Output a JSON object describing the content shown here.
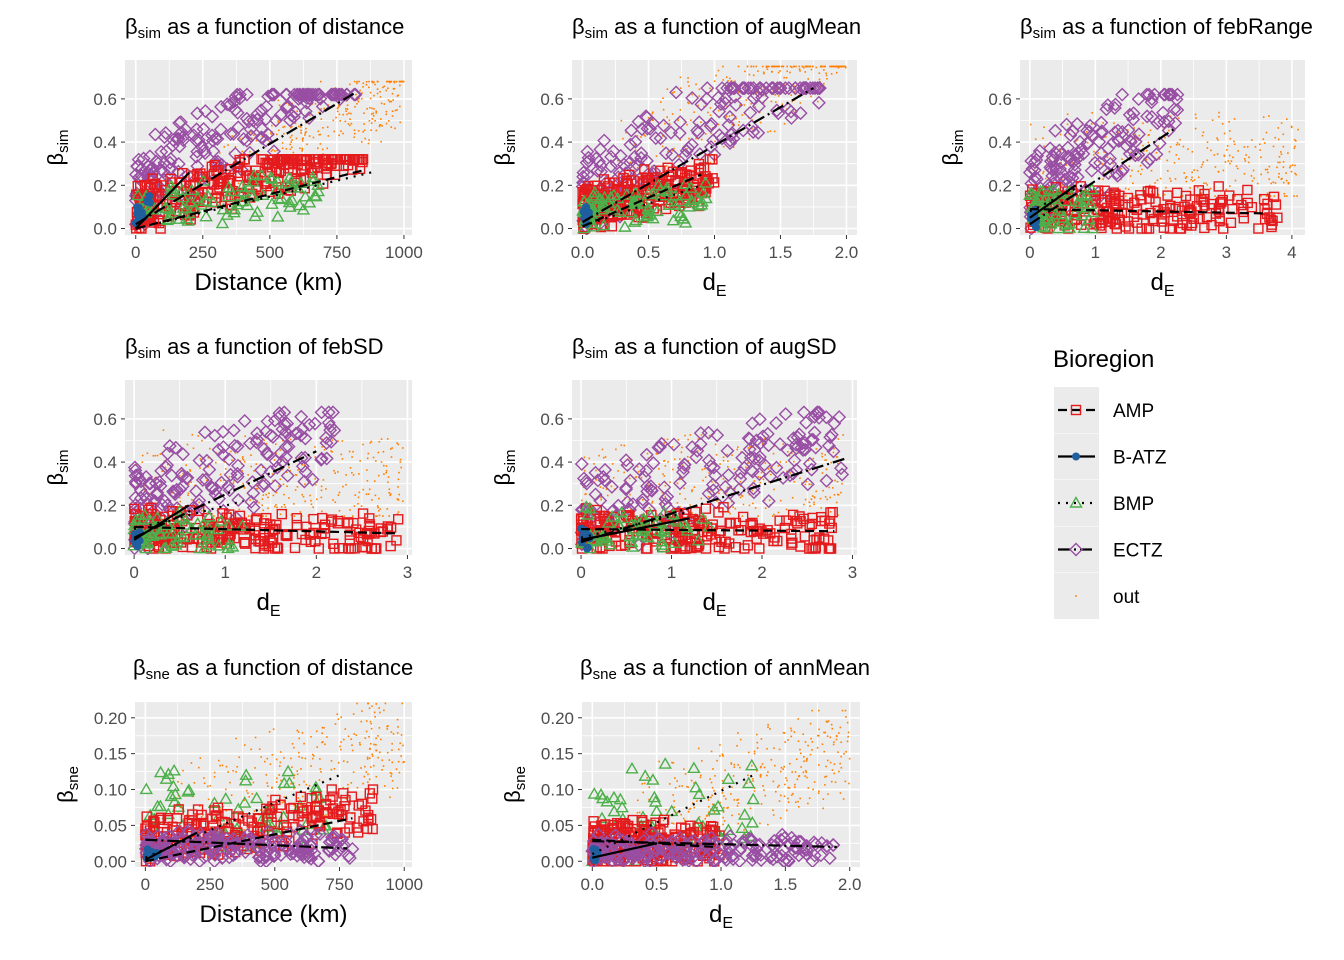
{
  "colors": {
    "panel_bg": "#EBEBEB",
    "grid": "#FFFFFF",
    "tick_text": "#4D4D4D",
    "text": "#000000",
    "AMP": "#E41A1C",
    "B-ATZ": "#1F5F9E",
    "BMP": "#4DAF4A",
    "ECTZ": "#984EA3",
    "out": "#FF7F00",
    "fit_line": "#000000"
  },
  "legend": {
    "title": "Bioregion",
    "entries": [
      {
        "key": "AMP",
        "label": "AMP",
        "marker": "square-open",
        "line": "dashed"
      },
      {
        "key": "B-ATZ",
        "label": "B-ATZ",
        "marker": "circle-filled",
        "line": "solid"
      },
      {
        "key": "BMP",
        "label": "BMP",
        "marker": "triangle-open",
        "line": "dotted"
      },
      {
        "key": "ECTZ",
        "label": "ECTZ",
        "marker": "diamond-open",
        "line": "dashdot"
      },
      {
        "key": "out",
        "label": "out",
        "marker": "point",
        "line": "none"
      }
    ]
  },
  "chart_data": [
    {
      "type": "scatter",
      "title": {
        "sym": "β",
        "sub": "sim",
        "rest": " as a function of distance"
      },
      "xlabel": "Distance (km)",
      "ylabel": {
        "sym": "β",
        "sub": "sim"
      },
      "xlim": [
        -40,
        1030
      ],
      "ylim": [
        -0.03,
        0.78
      ],
      "xticks": [
        0,
        250,
        500,
        750,
        1000
      ],
      "xticklabels": [
        "0",
        "250",
        "500",
        "750",
        "1000"
      ],
      "yticks": [
        0,
        0.2,
        0.4,
        0.6
      ],
      "yticklabels": [
        "0.0",
        "0.2",
        "0.4",
        "0.6"
      ],
      "series": [
        {
          "key": "out",
          "x_range": [
            300,
            1000
          ],
          "y_range": [
            0.15,
            0.68
          ],
          "slope": 0.0005,
          "n": 320
        },
        {
          "key": "ECTZ",
          "x_range": [
            0,
            820
          ],
          "y_range": [
            0.02,
            0.62
          ],
          "slope": 0.00075,
          "n": 200
        },
        {
          "key": "AMP",
          "x_range": [
            0,
            850
          ],
          "y_range": [
            0.0,
            0.32
          ],
          "slope": 0.00034,
          "n": 280
        },
        {
          "key": "BMP",
          "x_range": [
            0,
            700
          ],
          "y_range": [
            0.0,
            0.3
          ],
          "slope": 0.00012,
          "n": 90
        },
        {
          "key": "B-ATZ",
          "x_range": [
            0,
            60
          ],
          "y_range": [
            0.0,
            0.15
          ],
          "slope": 0.002,
          "n": 12
        }
      ],
      "fits": [
        {
          "key": "ECTZ",
          "style": "dashdot",
          "x": [
            0,
            820
          ],
          "y": [
            0.02,
            0.63
          ]
        },
        {
          "key": "AMP",
          "style": "dashed",
          "x": [
            0,
            850
          ],
          "y": [
            0.0,
            0.27
          ]
        },
        {
          "key": "BMP",
          "style": "dotted",
          "x": [
            0,
            880
          ],
          "y": [
            0.0,
            0.26
          ]
        },
        {
          "key": "B-ATZ",
          "style": "solid",
          "x": [
            0,
            200
          ],
          "y": [
            0.0,
            0.26
          ]
        }
      ]
    },
    {
      "type": "scatter",
      "title": {
        "sym": "β",
        "sub": "sim",
        "rest": " as a function of augMean"
      },
      "xlabel": "d",
      "xlabel_sub": "E",
      "ylabel": {
        "sym": "β",
        "sub": "sim"
      },
      "xlim": [
        -0.08,
        2.08
      ],
      "ylim": [
        -0.03,
        0.78
      ],
      "xticks": [
        0,
        0.5,
        1,
        1.5,
        2
      ],
      "xticklabels": [
        "0.0",
        "0.5",
        "1.0",
        "1.5",
        "2.0"
      ],
      "yticks": [
        0,
        0.2,
        0.4,
        0.6
      ],
      "yticklabels": [
        "0.0",
        "0.2",
        "0.4",
        "0.6"
      ],
      "series": [
        {
          "key": "out",
          "x_range": [
            0.2,
            2.0
          ],
          "y_range": [
            0.05,
            0.75
          ],
          "slope": 0.37,
          "n": 340
        },
        {
          "key": "ECTZ",
          "x_range": [
            0,
            1.8
          ],
          "y_range": [
            0.0,
            0.65
          ],
          "slope": 0.35,
          "n": 180
        },
        {
          "key": "AMP",
          "x_range": [
            0,
            1.0
          ],
          "y_range": [
            0.0,
            0.32
          ],
          "slope": 0.15,
          "n": 240
        },
        {
          "key": "BMP",
          "x_range": [
            0,
            0.95
          ],
          "y_range": [
            0.0,
            0.3
          ],
          "slope": 0.05,
          "n": 90
        },
        {
          "key": "B-ATZ",
          "x_range": [
            0,
            0.05
          ],
          "y_range": [
            0.0,
            0.15
          ],
          "slope": 0.5,
          "n": 10
        }
      ],
      "fits": [
        {
          "key": "ECTZ",
          "style": "dashdot",
          "x": [
            0,
            1.75
          ],
          "y": [
            0.03,
            0.65
          ]
        },
        {
          "key": "AMP",
          "style": "dashed",
          "x": [
            0,
            0.9
          ],
          "y": [
            0.01,
            0.25
          ]
        },
        {
          "key": "BMP",
          "style": "dotted",
          "x": [
            0,
            0.9
          ],
          "y": [
            0.01,
            0.2
          ]
        }
      ]
    },
    {
      "type": "scatter",
      "title": {
        "sym": "β",
        "sub": "sim",
        "rest": " as a function of febRange"
      },
      "xlabel": "d",
      "xlabel_sub": "E",
      "ylabel": {
        "sym": "β",
        "sub": "sim"
      },
      "xlim": [
        -0.15,
        4.2
      ],
      "ylim": [
        -0.03,
        0.78
      ],
      "xticks": [
        0,
        1,
        2,
        3,
        4
      ],
      "xticklabels": [
        "0",
        "1",
        "2",
        "3",
        "4"
      ],
      "yticks": [
        0,
        0.2,
        0.4,
        0.6
      ],
      "yticklabels": [
        "0.0",
        "0.2",
        "0.4",
        "0.6"
      ],
      "series": [
        {
          "key": "out",
          "x_range": [
            0,
            4.1
          ],
          "y_range": [
            0.15,
            0.75
          ],
          "slope": 0.0,
          "n": 340
        },
        {
          "key": "ECTZ",
          "x_range": [
            0,
            2.3
          ],
          "y_range": [
            0.0,
            0.62
          ],
          "slope": 0.18,
          "n": 180
        },
        {
          "key": "AMP",
          "x_range": [
            0,
            3.8
          ],
          "y_range": [
            0.0,
            0.32
          ],
          "slope": -0.005,
          "n": 220
        },
        {
          "key": "BMP",
          "x_range": [
            0,
            1.0
          ],
          "y_range": [
            0.0,
            0.3
          ],
          "slope": 0.0,
          "n": 60
        },
        {
          "key": "B-ATZ",
          "x_range": [
            0,
            0.1
          ],
          "y_range": [
            0.0,
            0.15
          ],
          "slope": 0.0,
          "n": 10
        }
      ],
      "fits": [
        {
          "key": "ECTZ",
          "style": "dashdot",
          "x": [
            0,
            2.2
          ],
          "y": [
            0.02,
            0.46
          ]
        },
        {
          "key": "AMP",
          "style": "dashed",
          "x": [
            0,
            3.6
          ],
          "y": [
            0.09,
            0.07
          ]
        },
        {
          "key": "BMP",
          "style": "dotted",
          "x": [
            0,
            0.8
          ],
          "y": [
            0.08,
            0.2
          ]
        },
        {
          "key": "B-ATZ",
          "style": "solid",
          "x": [
            0,
            0.7
          ],
          "y": [
            0.05,
            0.2
          ]
        }
      ]
    },
    {
      "type": "scatter",
      "title": {
        "sym": "β",
        "sub": "sim",
        "rest": " as a function of febSD"
      },
      "xlabel": "d",
      "xlabel_sub": "E",
      "ylabel": {
        "sym": "β",
        "sub": "sim"
      },
      "xlim": [
        -0.1,
        3.05
      ],
      "ylim": [
        -0.03,
        0.78
      ],
      "xticks": [
        0,
        1,
        2,
        3
      ],
      "xticklabels": [
        "0",
        "1",
        "2",
        "3"
      ],
      "yticks": [
        0,
        0.2,
        0.4,
        0.6
      ],
      "yticklabels": [
        "0.0",
        "0.2",
        "0.4",
        "0.6"
      ],
      "series": [
        {
          "key": "out",
          "x_range": [
            0,
            2.95
          ],
          "y_range": [
            0.15,
            0.75
          ],
          "slope": 0.0,
          "n": 330
        },
        {
          "key": "ECTZ",
          "x_range": [
            0,
            2.2
          ],
          "y_range": [
            0.0,
            0.63
          ],
          "slope": 0.18,
          "n": 180
        },
        {
          "key": "AMP",
          "x_range": [
            0,
            2.9
          ],
          "y_range": [
            0.0,
            0.3
          ],
          "slope": -0.01,
          "n": 220
        },
        {
          "key": "BMP",
          "x_range": [
            0,
            1.2
          ],
          "y_range": [
            0.0,
            0.3
          ],
          "slope": 0.0,
          "n": 60
        },
        {
          "key": "B-ATZ",
          "x_range": [
            0,
            0.1
          ],
          "y_range": [
            0.0,
            0.15
          ],
          "slope": 0.0,
          "n": 10
        }
      ],
      "fits": [
        {
          "key": "ECTZ",
          "style": "dashdot",
          "x": [
            0,
            2.0
          ],
          "y": [
            0.05,
            0.45
          ]
        },
        {
          "key": "AMP",
          "style": "dashed",
          "x": [
            0,
            2.9
          ],
          "y": [
            0.1,
            0.07
          ]
        },
        {
          "key": "BMP",
          "style": "dotted",
          "x": [
            0,
            1.2
          ],
          "y": [
            0.09,
            0.22
          ]
        },
        {
          "key": "B-ATZ",
          "style": "solid",
          "x": [
            0,
            0.6
          ],
          "y": [
            0.04,
            0.2
          ]
        }
      ]
    },
    {
      "type": "scatter",
      "title": {
        "sym": "β",
        "sub": "sim",
        "rest": " as a function of augSD"
      },
      "xlabel": "d",
      "xlabel_sub": "E",
      "ylabel": {
        "sym": "β",
        "sub": "sim"
      },
      "xlim": [
        -0.1,
        3.05
      ],
      "ylim": [
        -0.03,
        0.78
      ],
      "xticks": [
        0,
        1,
        2,
        3
      ],
      "xticklabels": [
        "0",
        "1",
        "2",
        "3"
      ],
      "yticks": [
        0,
        0.2,
        0.4,
        0.6
      ],
      "yticklabels": [
        "0.0",
        "0.2",
        "0.4",
        "0.6"
      ],
      "series": [
        {
          "key": "out",
          "x_range": [
            0,
            2.9
          ],
          "y_range": [
            0.15,
            0.75
          ],
          "slope": 0.0,
          "n": 330
        },
        {
          "key": "ECTZ",
          "x_range": [
            0,
            2.95
          ],
          "y_range": [
            0.0,
            0.63
          ],
          "slope": 0.13,
          "n": 180
        },
        {
          "key": "AMP",
          "x_range": [
            0,
            2.8
          ],
          "y_range": [
            0.0,
            0.3
          ],
          "slope": -0.005,
          "n": 220
        },
        {
          "key": "BMP",
          "x_range": [
            0,
            1.5
          ],
          "y_range": [
            0.0,
            0.3
          ],
          "slope": 0.0,
          "n": 60
        },
        {
          "key": "B-ATZ",
          "x_range": [
            0,
            0.1
          ],
          "y_range": [
            0.0,
            0.15
          ],
          "slope": 0.0,
          "n": 10
        }
      ],
      "fits": [
        {
          "key": "ECTZ",
          "style": "dashdot",
          "x": [
            0,
            2.95
          ],
          "y": [
            0.03,
            0.42
          ]
        },
        {
          "key": "AMP",
          "style": "dashed",
          "x": [
            0,
            2.8
          ],
          "y": [
            0.09,
            0.08
          ]
        },
        {
          "key": "BMP",
          "style": "dotted",
          "x": [
            0,
            1.2
          ],
          "y": [
            0.05,
            0.17
          ]
        },
        {
          "key": "B-ATZ",
          "style": "solid",
          "x": [
            0,
            1.2
          ],
          "y": [
            0.04,
            0.14
          ]
        }
      ]
    },
    {
      "type": "scatter",
      "title": {
        "sym": "β",
        "sub": "sne",
        "rest": " as a function of distance"
      },
      "xlabel": "Distance (km)",
      "ylabel": {
        "sym": "β",
        "sub": "sne"
      },
      "xlim": [
        -40,
        1030
      ],
      "ylim": [
        -0.008,
        0.222
      ],
      "xticks": [
        0,
        250,
        500,
        750,
        1000
      ],
      "xticklabels": [
        "0",
        "250",
        "500",
        "750",
        "1000"
      ],
      "yticks": [
        0,
        0.05,
        0.1,
        0.15,
        0.2
      ],
      "yticklabels": [
        "0.00",
        "0.05",
        "0.10",
        "0.15",
        "0.20"
      ],
      "series": [
        {
          "key": "out",
          "x_range": [
            100,
            1000
          ],
          "y_range": [
            0.0,
            0.22
          ],
          "slope": 0.00012,
          "n": 320
        },
        {
          "key": "BMP",
          "x_range": [
            0,
            700
          ],
          "y_range": [
            0.02,
            0.2
          ],
          "slope": 0.0,
          "n": 70
        },
        {
          "key": "AMP",
          "x_range": [
            0,
            880
          ],
          "y_range": [
            0.0,
            0.1
          ],
          "slope": 5e-05,
          "n": 220
        },
        {
          "key": "ECTZ",
          "x_range": [
            0,
            800
          ],
          "y_range": [
            0.0,
            0.07
          ],
          "slope": 0.0,
          "n": 200
        },
        {
          "key": "B-ATZ",
          "x_range": [
            0,
            60
          ],
          "y_range": [
            0.0,
            0.03
          ],
          "slope": 0.0,
          "n": 10
        }
      ],
      "fits": [
        {
          "key": "BMP",
          "style": "dotted",
          "x": [
            0,
            750
          ],
          "y": [
            0.005,
            0.12
          ]
        },
        {
          "key": "AMP",
          "style": "dashed",
          "x": [
            0,
            800
          ],
          "y": [
            0.0,
            0.06
          ]
        },
        {
          "key": "ECTZ",
          "style": "dashdot",
          "x": [
            0,
            780
          ],
          "y": [
            0.03,
            0.018
          ]
        },
        {
          "key": "B-ATZ",
          "style": "solid",
          "x": [
            0,
            200
          ],
          "y": [
            0.002,
            0.04
          ]
        }
      ]
    },
    {
      "type": "scatter",
      "title": {
        "sym": "β",
        "sub": "sne",
        "rest": " as a function of annMean"
      },
      "xlabel": "d",
      "xlabel_sub": "E",
      "ylabel": {
        "sym": "β",
        "sub": "sne"
      },
      "xlim": [
        -0.08,
        2.08
      ],
      "ylim": [
        -0.008,
        0.222
      ],
      "xticks": [
        0,
        0.5,
        1,
        1.5,
        2
      ],
      "xticklabels": [
        "0.0",
        "0.5",
        "1.0",
        "1.5",
        "2.0"
      ],
      "yticks": [
        0,
        0.05,
        0.1,
        0.15,
        0.2
      ],
      "yticklabels": [
        "0.00",
        "0.05",
        "0.10",
        "0.15",
        "0.20"
      ],
      "series": [
        {
          "key": "out",
          "x_range": [
            0.3,
            2.0
          ],
          "y_range": [
            0.0,
            0.21
          ],
          "slope": 0.06,
          "n": 320
        },
        {
          "key": "BMP",
          "x_range": [
            0,
            1.3
          ],
          "y_range": [
            0.0,
            0.2
          ],
          "slope": 0.03,
          "n": 60
        },
        {
          "key": "AMP",
          "x_range": [
            0,
            1.0
          ],
          "y_range": [
            0.0,
            0.09
          ],
          "slope": 0.0,
          "n": 220
        },
        {
          "key": "ECTZ",
          "x_range": [
            0,
            1.9
          ],
          "y_range": [
            0.0,
            0.06
          ],
          "slope": 0.0,
          "n": 200
        },
        {
          "key": "B-ATZ",
          "x_range": [
            0,
            0.05
          ],
          "y_range": [
            0.0,
            0.03
          ],
          "slope": 0.0,
          "n": 10
        }
      ],
      "fits": [
        {
          "key": "BMP",
          "style": "dotted",
          "x": [
            0,
            1.25
          ],
          "y": [
            0.01,
            0.12
          ]
        },
        {
          "key": "AMP",
          "style": "dashed",
          "x": [
            0,
            0.95
          ],
          "y": [
            0.03,
            0.02
          ]
        },
        {
          "key": "ECTZ",
          "style": "dashdot",
          "x": [
            0,
            1.9
          ],
          "y": [
            0.028,
            0.02
          ]
        },
        {
          "key": "B-ATZ",
          "style": "solid",
          "x": [
            0,
            0.5
          ],
          "y": [
            0.005,
            0.025
          ]
        }
      ]
    }
  ]
}
